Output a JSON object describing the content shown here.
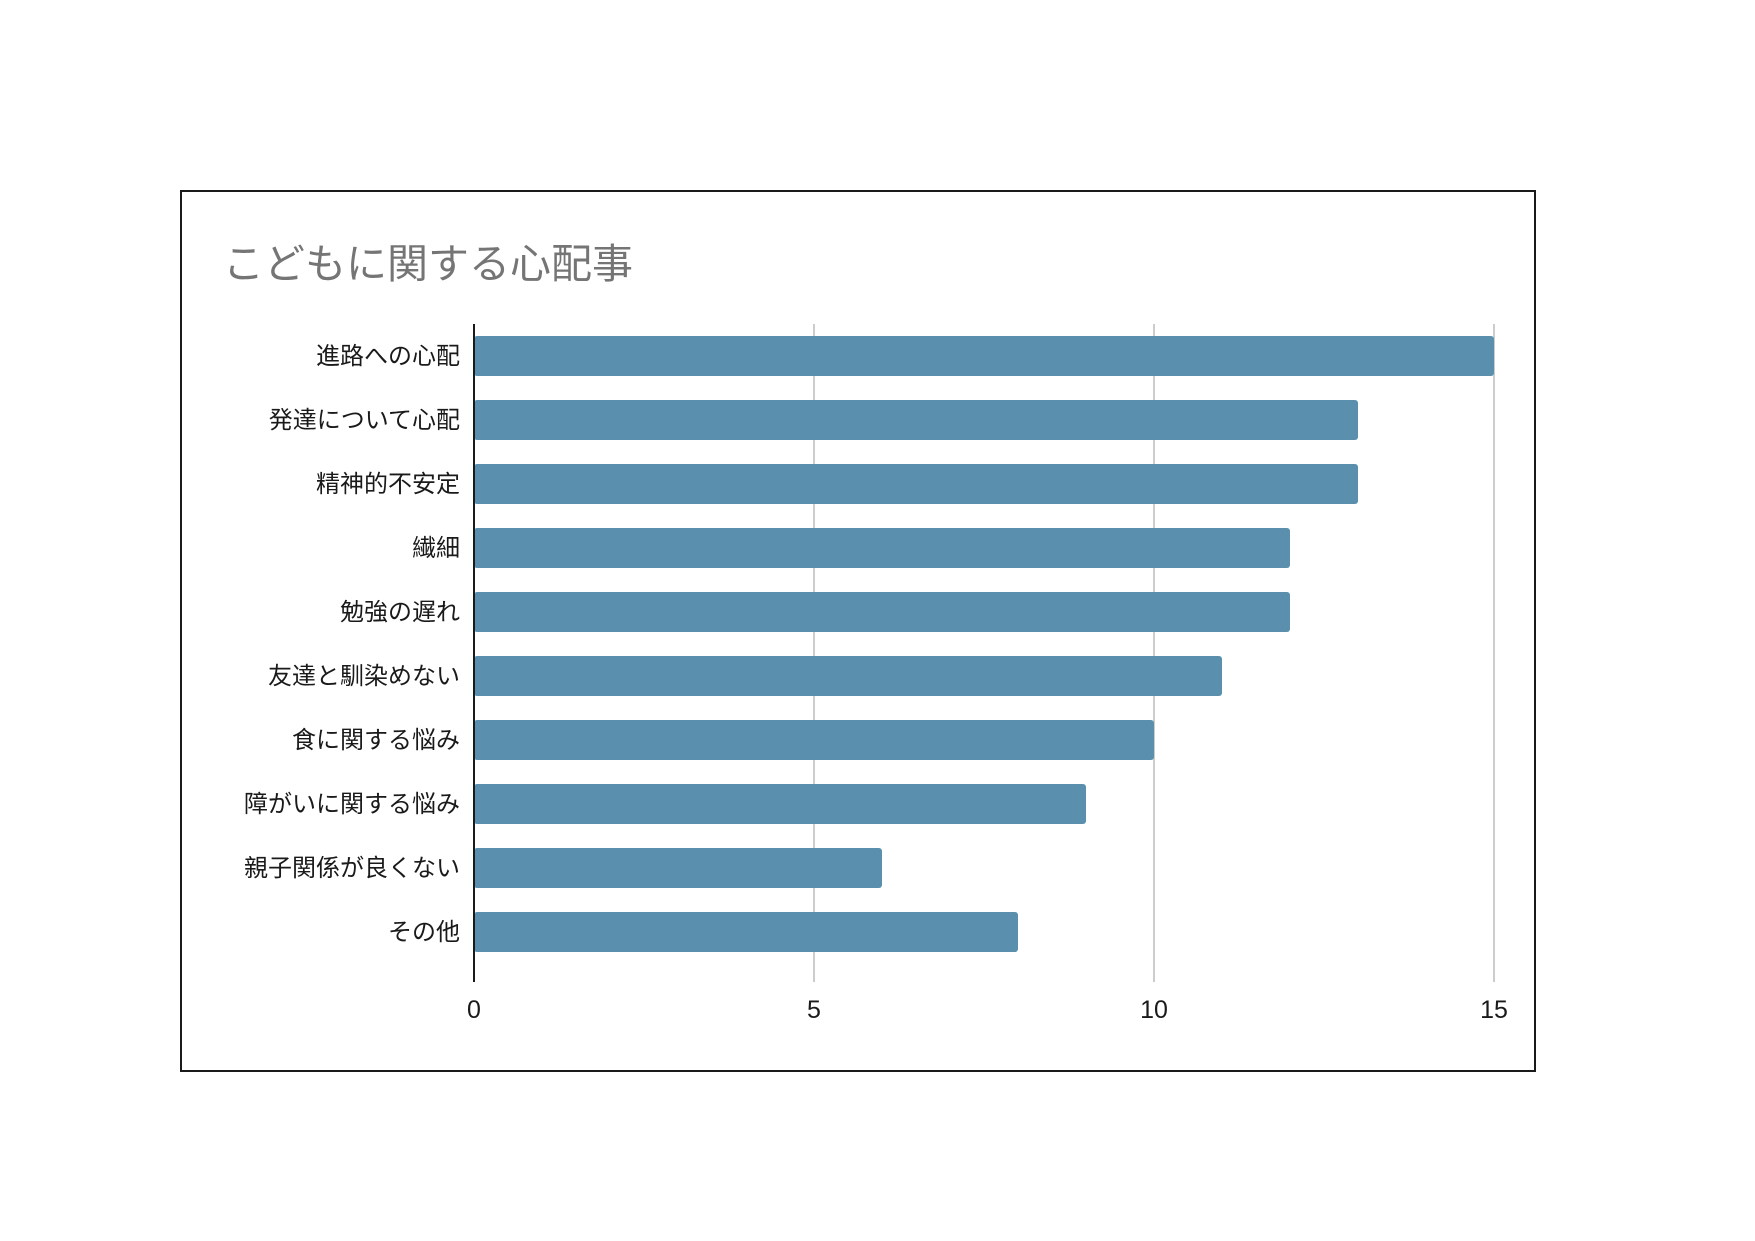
{
  "chart_data": {
    "type": "bar",
    "orientation": "horizontal",
    "title": "こどもに関する心配事",
    "categories": [
      "進路への心配",
      "発達について心配",
      "精神的不安定",
      "繊細",
      "勉強の遅れ",
      "友達と馴染めない",
      "食に関する悩み",
      "障がいに関する悩み",
      "親子関係が良くない",
      "その他"
    ],
    "values": [
      15,
      13,
      13,
      12,
      12,
      11,
      10,
      9,
      6,
      8
    ],
    "xlim": [
      0,
      15
    ],
    "xticks": [
      0,
      5,
      10,
      15
    ],
    "xlabel": "",
    "ylabel": "",
    "grid": "vertical",
    "legend": "none",
    "colors": {
      "bar": "#5a8fae",
      "title": "#757575",
      "grid": "#cccccc",
      "axis": "#1a1a1a"
    }
  }
}
